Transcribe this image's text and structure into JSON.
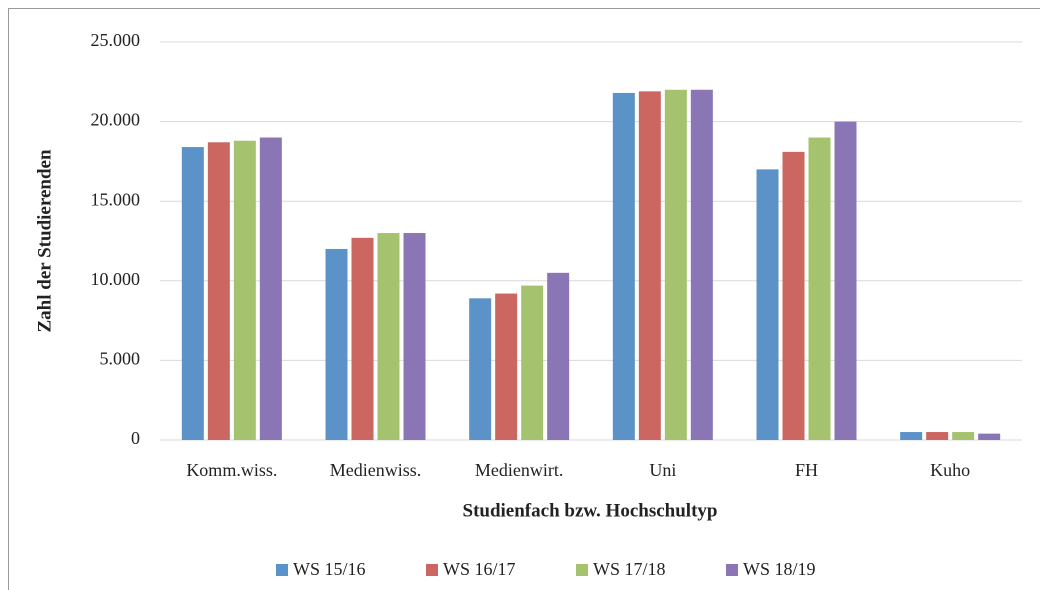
{
  "chart_data": {
    "type": "bar",
    "x_label": "Studienfach bzw. Hochschultyp",
    "y_label": "Zahl der Studierenden",
    "categories": [
      "Komm.wiss.",
      "Medienwiss.",
      "Medienwirt.",
      "Uni",
      "FH",
      "Kuho"
    ],
    "series": [
      {
        "name": "WS 15/16",
        "color": "#5b93c8",
        "values": [
          18400,
          12000,
          8900,
          21800,
          17000,
          500
        ]
      },
      {
        "name": "WS 16/17",
        "color": "#cc6660",
        "values": [
          18700,
          12700,
          9200,
          21900,
          18100,
          500
        ]
      },
      {
        "name": "WS 17/18",
        "color": "#a5c36f",
        "values": [
          18800,
          13000,
          9700,
          22000,
          19000,
          500
        ]
      },
      {
        "name": "WS 18/19",
        "color": "#8a75b5",
        "values": [
          19000,
          13000,
          10500,
          22000,
          20000,
          400
        ]
      }
    ],
    "ylim": [
      0,
      25000
    ],
    "yticks": [
      0,
      {
        "value": 5000,
        "label": "5.000"
      },
      {
        "value": 10000,
        "label": "10.000"
      },
      {
        "value": 15000,
        "label": "15.000"
      },
      {
        "value": 20000,
        "label": "20.000"
      },
      {
        "value": 25000,
        "label": "25.000"
      }
    ],
    "grid": true,
    "legend": "bottom"
  }
}
